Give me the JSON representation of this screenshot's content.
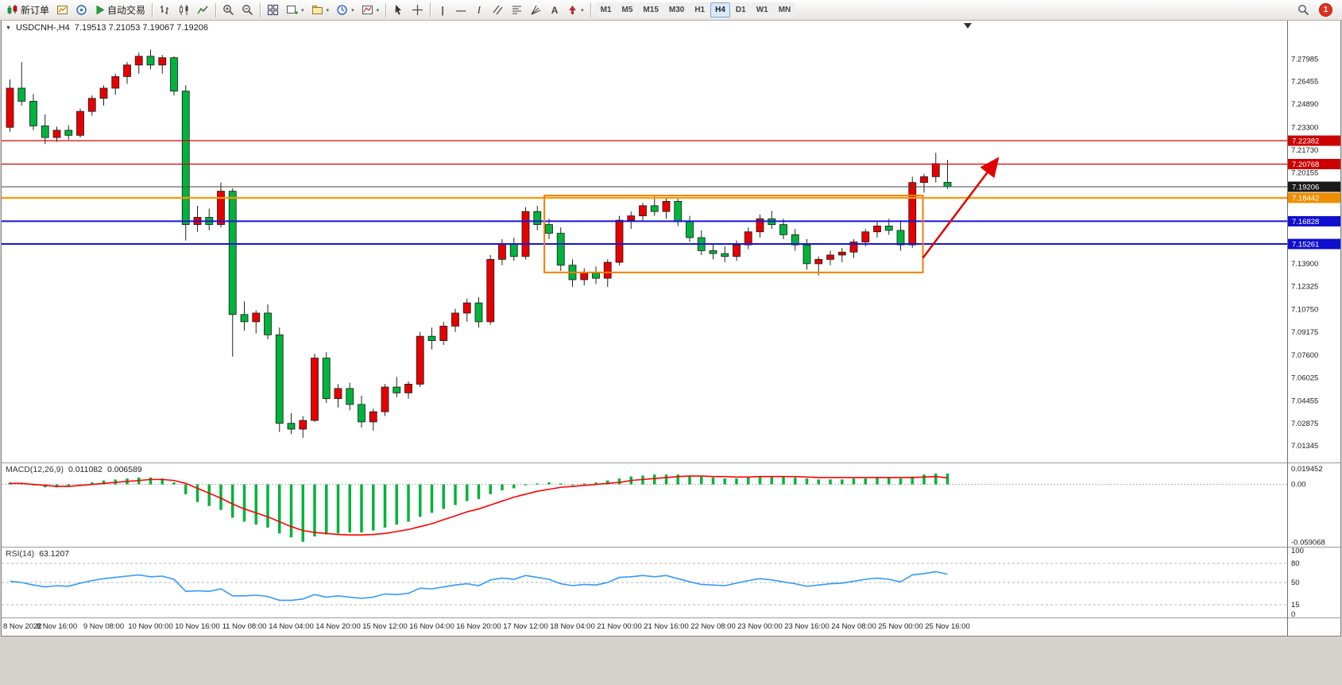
{
  "toolbar": {
    "new_order_label": "新订单",
    "auto_trading_label": "自动交易",
    "glyphs": {
      "vertical_line": "|",
      "horizontal_line": "—",
      "trendline": "/",
      "text_tool": "A",
      "dropdown": "▾",
      "symbol_dropdown": "▼"
    },
    "timeframes": [
      "M1",
      "M5",
      "M15",
      "M30",
      "H1",
      "H4",
      "D1",
      "W1",
      "MN"
    ],
    "active_timeframe": "H4",
    "notification_count": "1"
  },
  "chart_data": {
    "type": "candlestick",
    "symbol": "USDCNH-,H4",
    "ohlc_text": "7.19513 7.21053 7.19067 7.19206",
    "up_color": "#e60000",
    "down_color": "#00b33c",
    "price_range": [
      7.002,
      7.306
    ],
    "price_axis_labels": [
      "7.27985",
      "7.26455",
      "7.24890",
      "7.23300",
      "7.21730",
      "7.20155",
      "7.13900",
      "7.12325",
      "7.10750",
      "7.09175",
      "7.07600",
      "7.06025",
      "7.04455",
      "7.02875",
      "7.01345"
    ],
    "hlines": [
      {
        "value": "7.22382",
        "price": 7.22382,
        "color": "#dc0000",
        "width": 1.2,
        "tag_bg": "#cc0000"
      },
      {
        "value": "7.20768",
        "price": 7.20768,
        "color": "#dc0000",
        "width": 1.2,
        "tag_bg": "#cc0000"
      },
      {
        "value": "7.19206",
        "price": 7.19206,
        "color": "#444444",
        "width": 1,
        "tag_bg": "#1a1a1a",
        "current": true
      },
      {
        "value": "7.18442",
        "price": 7.18442,
        "color": "#ff9800",
        "width": 2.2,
        "tag_bg": "#ef8e00"
      },
      {
        "value": "7.16828",
        "price": 7.16828,
        "color": "#1616d6",
        "width": 2,
        "tag_bg": "#0f0fd0"
      },
      {
        "value": "7.15261",
        "price": 7.15261,
        "color": "#1616d6",
        "width": 2,
        "tag_bg": "#0f0fd0"
      }
    ],
    "box": {
      "bar_start": 45.6,
      "bar_end": 77.9,
      "price_top": 7.186,
      "price_bottom": 7.133,
      "color": "#f08000"
    },
    "arrow": {
      "bar_start": 77.9,
      "price_start": 7.143,
      "bar_end": 84.2,
      "price_end": 7.2105,
      "color": "#e00000"
    },
    "time_label_step": 4,
    "time_labels": [
      "8 Nov 2022",
      "8 Nov 16:00",
      "9 Nov 08:00",
      "10 Nov 00:00",
      "10 Nov 16:00",
      "11 Nov 08:00",
      "14 Nov 04:00",
      "14 Nov 20:00",
      "15 Nov 12:00",
      "16 Nov 04:00",
      "16 Nov 20:00",
      "17 Nov 12:00",
      "18 Nov 04:00",
      "21 Nov 00:00",
      "21 Nov 16:00",
      "22 Nov 08:00",
      "23 Nov 00:00",
      "23 Nov 16:00",
      "24 Nov 08:00",
      "25 Nov 00:00",
      "25 Nov 16:00"
    ],
    "candles": [
      [
        7.233,
        7.266,
        7.23,
        7.26
      ],
      [
        7.26,
        7.278,
        7.248,
        7.251
      ],
      [
        7.251,
        7.256,
        7.231,
        7.234
      ],
      [
        7.234,
        7.242,
        7.2215,
        7.226
      ],
      [
        7.226,
        7.2335,
        7.223,
        7.231
      ],
      [
        7.231,
        7.2345,
        7.2245,
        7.2275
      ],
      [
        7.2275,
        7.246,
        7.226,
        7.244
      ],
      [
        7.244,
        7.255,
        7.241,
        7.253
      ],
      [
        7.253,
        7.262,
        7.248,
        7.26
      ],
      [
        7.26,
        7.27,
        7.2555,
        7.268
      ],
      [
        7.268,
        7.278,
        7.263,
        7.276
      ],
      [
        7.276,
        7.2845,
        7.27,
        7.282
      ],
      [
        7.282,
        7.2865,
        7.273,
        7.276
      ],
      [
        7.276,
        7.283,
        7.27,
        7.281
      ],
      [
        7.281,
        7.282,
        7.255,
        7.258
      ],
      [
        7.258,
        7.262,
        7.155,
        7.166
      ],
      [
        7.166,
        7.179,
        7.161,
        7.171
      ],
      [
        7.171,
        7.177,
        7.162,
        7.166
      ],
      [
        7.166,
        7.195,
        7.164,
        7.189
      ],
      [
        7.189,
        7.191,
        7.075,
        7.104
      ],
      [
        7.104,
        7.113,
        7.093,
        7.099
      ],
      [
        7.099,
        7.107,
        7.091,
        7.105
      ],
      [
        7.105,
        7.111,
        7.087,
        7.09
      ],
      [
        7.09,
        7.095,
        7.023,
        7.029
      ],
      [
        7.029,
        7.036,
        7.0215,
        7.025
      ],
      [
        7.025,
        7.034,
        7.019,
        7.031
      ],
      [
        7.031,
        7.077,
        7.03,
        7.074
      ],
      [
        7.074,
        7.078,
        7.043,
        7.046
      ],
      [
        7.046,
        7.056,
        7.04,
        7.053
      ],
      [
        7.053,
        7.057,
        7.038,
        7.042
      ],
      [
        7.042,
        7.048,
        7.026,
        7.03
      ],
      [
        7.03,
        7.039,
        7.024,
        7.037
      ],
      [
        7.037,
        7.056,
        7.034,
        7.054
      ],
      [
        7.054,
        7.061,
        7.047,
        7.05
      ],
      [
        7.05,
        7.058,
        7.046,
        7.056
      ],
      [
        7.056,
        7.092,
        7.054,
        7.089
      ],
      [
        7.089,
        7.095,
        7.08,
        7.086
      ],
      [
        7.086,
        7.099,
        7.083,
        7.096
      ],
      [
        7.096,
        7.108,
        7.092,
        7.105
      ],
      [
        7.105,
        7.115,
        7.099,
        7.112
      ],
      [
        7.112,
        7.116,
        7.095,
        7.099
      ],
      [
        7.099,
        7.145,
        7.097,
        7.142
      ],
      [
        7.142,
        7.156,
        7.138,
        7.153
      ],
      [
        7.153,
        7.157,
        7.141,
        7.144
      ],
      [
        7.144,
        7.178,
        7.142,
        7.175
      ],
      [
        7.175,
        7.179,
        7.162,
        7.166
      ],
      [
        7.166,
        7.17,
        7.156,
        7.16
      ],
      [
        7.16,
        7.164,
        7.134,
        7.138
      ],
      [
        7.138,
        7.142,
        7.123,
        7.128
      ],
      [
        7.128,
        7.136,
        7.124,
        7.133
      ],
      [
        7.133,
        7.137,
        7.125,
        7.129
      ],
      [
        7.129,
        7.142,
        7.123,
        7.14
      ],
      [
        7.14,
        7.172,
        7.138,
        7.169
      ],
      [
        7.169,
        7.175,
        7.163,
        7.172
      ],
      [
        7.172,
        7.181,
        7.168,
        7.179
      ],
      [
        7.179,
        7.1855,
        7.172,
        7.175
      ],
      [
        7.175,
        7.184,
        7.17,
        7.182
      ],
      [
        7.182,
        7.185,
        7.165,
        7.168
      ],
      [
        7.168,
        7.172,
        7.154,
        7.157
      ],
      [
        7.157,
        7.162,
        7.145,
        7.148
      ],
      [
        7.148,
        7.153,
        7.142,
        7.146
      ],
      [
        7.146,
        7.151,
        7.14,
        7.144
      ],
      [
        7.144,
        7.155,
        7.141,
        7.152
      ],
      [
        7.152,
        7.164,
        7.149,
        7.161
      ],
      [
        7.161,
        7.173,
        7.157,
        7.17
      ],
      [
        7.17,
        7.1755,
        7.163,
        7.166
      ],
      [
        7.166,
        7.17,
        7.156,
        7.159
      ],
      [
        7.159,
        7.163,
        7.148,
        7.152
      ],
      [
        7.152,
        7.156,
        7.135,
        7.139
      ],
      [
        7.139,
        7.144,
        7.131,
        7.142
      ],
      [
        7.142,
        7.148,
        7.138,
        7.145
      ],
      [
        7.145,
        7.15,
        7.14,
        7.147
      ],
      [
        7.147,
        7.156,
        7.143,
        7.154
      ],
      [
        7.154,
        7.163,
        7.151,
        7.161
      ],
      [
        7.161,
        7.168,
        7.157,
        7.165
      ],
      [
        7.165,
        7.17,
        7.159,
        7.162
      ],
      [
        7.162,
        7.169,
        7.148,
        7.152
      ],
      [
        7.152,
        7.199,
        7.15,
        7.195
      ],
      [
        7.195,
        7.201,
        7.188,
        7.199
      ],
      [
        7.199,
        7.2155,
        7.195,
        7.208
      ],
      [
        7.19513,
        7.21053,
        7.19067,
        7.19206
      ]
    ],
    "macd": {
      "label": "MACD(12,26,9)",
      "main_value": "0.011082",
      "signal_value": "0.006589",
      "axis_labels": [
        "0.019452",
        "0.00",
        "-0.059068"
      ],
      "range": [
        -0.0635,
        0.0215
      ],
      "hist_color": "#00b33c",
      "signal_color": "#ff0000",
      "hist": [
        0.002,
        0.001,
        -0.001,
        -0.003,
        -0.003,
        -0.002,
        0.0,
        0.002,
        0.004,
        0.005,
        0.006,
        0.007,
        0.007,
        0.006,
        0.002,
        -0.01,
        -0.018,
        -0.022,
        -0.026,
        -0.034,
        -0.038,
        -0.041,
        -0.044,
        -0.05,
        -0.054,
        -0.0585,
        -0.053,
        -0.051,
        -0.05,
        -0.049,
        -0.049,
        -0.047,
        -0.044,
        -0.041,
        -0.038,
        -0.033,
        -0.029,
        -0.025,
        -0.021,
        -0.017,
        -0.015,
        -0.01,
        -0.006,
        -0.004,
        -0.001,
        0.001,
        0.002,
        0.001,
        0.0,
        0.001,
        0.002,
        0.004,
        0.006,
        0.008,
        0.009,
        0.01,
        0.01,
        0.01,
        0.009,
        0.008,
        0.007,
        0.006,
        0.006,
        0.007,
        0.008,
        0.008,
        0.008,
        0.007,
        0.006,
        0.005,
        0.005,
        0.005,
        0.006,
        0.006,
        0.007,
        0.007,
        0.006,
        0.008,
        0.01,
        0.011,
        0.011082
      ],
      "signal": [
        0.001,
        0.001,
        0.0,
        -0.001,
        -0.002,
        -0.002,
        -0.001,
        0.0,
        0.001,
        0.002,
        0.003,
        0.004,
        0.005,
        0.005,
        0.004,
        0.001,
        -0.004,
        -0.009,
        -0.014,
        -0.02,
        -0.025,
        -0.029,
        -0.033,
        -0.038,
        -0.043,
        -0.047,
        -0.049,
        -0.05,
        -0.051,
        -0.0515,
        -0.0515,
        -0.051,
        -0.05,
        -0.048,
        -0.046,
        -0.043,
        -0.04,
        -0.036,
        -0.032,
        -0.028,
        -0.025,
        -0.021,
        -0.017,
        -0.013,
        -0.01,
        -0.007,
        -0.005,
        -0.003,
        -0.002,
        -0.001,
        0.0,
        0.001,
        0.002,
        0.004,
        0.005,
        0.006,
        0.007,
        0.008,
        0.0085,
        0.0085,
        0.008,
        0.008,
        0.0075,
        0.0075,
        0.008,
        0.008,
        0.008,
        0.008,
        0.0075,
        0.007,
        0.007,
        0.007,
        0.007,
        0.007,
        0.007,
        0.007,
        0.007,
        0.007,
        0.0075,
        0.008,
        0.006589
      ]
    },
    "rsi": {
      "label": "RSI(14)",
      "value": "63.1207",
      "axis_labels": [
        "100",
        "80",
        "50",
        "15",
        "0"
      ],
      "levels": [
        80,
        50,
        15
      ],
      "range": [
        0,
        100
      ],
      "line_color": "#3399ff",
      "values": [
        52,
        50,
        46,
        43,
        45,
        44,
        49,
        53,
        56,
        58,
        60,
        62,
        59,
        60,
        55,
        36,
        37,
        36,
        40,
        29,
        29,
        30,
        28,
        22,
        22,
        24,
        31,
        27,
        29,
        27,
        25,
        27,
        32,
        31,
        33,
        41,
        40,
        43,
        46,
        48,
        45,
        54,
        57,
        55,
        61,
        58,
        55,
        48,
        45,
        47,
        46,
        50,
        58,
        59,
        61,
        59,
        61,
        56,
        51,
        47,
        46,
        45,
        49,
        53,
        56,
        54,
        51,
        48,
        44,
        46,
        48,
        49,
        52,
        55,
        57,
        55,
        51,
        62,
        64,
        67,
        63.12
      ]
    }
  }
}
